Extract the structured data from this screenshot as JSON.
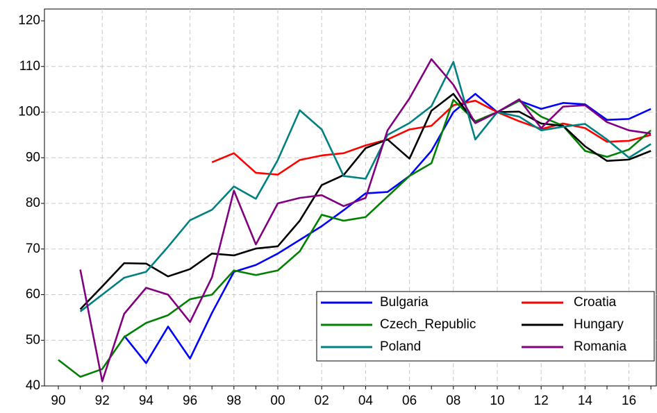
{
  "chart_data": {
    "type": "line",
    "categories": [
      "90",
      null,
      "92",
      null,
      "94",
      null,
      "96",
      null,
      "98",
      null,
      "00",
      null,
      "02",
      null,
      "04",
      null,
      "06",
      null,
      "08",
      null,
      "10",
      null,
      "12",
      null,
      "14",
      null,
      "16",
      null
    ],
    "series": [
      {
        "name": "Bulgaria",
        "color": "#0000ff",
        "values": [
          null,
          null,
          null,
          51,
          45,
          53,
          46,
          56,
          65,
          66.5,
          69,
          72,
          75,
          78.5,
          82.2,
          82.5,
          86,
          91.5,
          100,
          104,
          100,
          102.5,
          100.7,
          102,
          101.7,
          98.3,
          98.5,
          100.7
        ]
      },
      {
        "name": "Croatia",
        "color": "#ff0000",
        "values": [
          null,
          null,
          null,
          null,
          null,
          null,
          null,
          89,
          91,
          86.7,
          86.3,
          89.5,
          90.5,
          91,
          92.7,
          94,
          96.2,
          97,
          101.5,
          102.5,
          100,
          98,
          96.3,
          97.5,
          96.5,
          93.5,
          93.7,
          95
        ]
      },
      {
        "name": "Czech_Republic",
        "color": "#008000",
        "values": [
          45.7,
          42,
          43.7,
          50.7,
          53.8,
          55.5,
          59,
          60,
          65.3,
          64.3,
          65.3,
          69.5,
          77.5,
          76.2,
          77,
          81.5,
          86,
          88.8,
          102.7,
          98,
          100,
          102.5,
          99,
          97,
          91.5,
          90.2,
          91.8,
          96
        ]
      },
      {
        "name": "Hungary",
        "color": "#000000",
        "values": [
          null,
          56.8,
          61.8,
          66.9,
          66.8,
          64,
          65.6,
          69,
          68.6,
          70.1,
          70.6,
          76.2,
          84,
          86.2,
          92.1,
          94,
          89.8,
          100.3,
          104,
          97.6,
          100,
          100.1,
          97.5,
          97,
          92.5,
          89.3,
          89.6,
          91.5
        ]
      },
      {
        "name": "Poland",
        "color": "#008080",
        "values": [
          null,
          56.3,
          60,
          63.7,
          65,
          70.5,
          76.3,
          78.6,
          83.7,
          81,
          89.5,
          100.4,
          96.2,
          86,
          85.4,
          95,
          97.6,
          101.3,
          111,
          94,
          100,
          99,
          96,
          96.8,
          97.4,
          94,
          90,
          93
        ]
      },
      {
        "name": "Romania",
        "color": "#800080",
        "values": [
          null,
          65.5,
          41,
          55.8,
          61.5,
          60,
          54,
          63.8,
          82.8,
          71,
          80,
          81.2,
          81.8,
          79.4,
          81.2,
          96,
          103,
          111.6,
          106,
          97.6,
          100,
          102.8,
          96.5,
          101.2,
          101.5,
          97.8,
          96,
          95.3
        ]
      }
    ],
    "ylim": [
      40,
      120
    ],
    "yticks": [
      40,
      50,
      60,
      70,
      80,
      90,
      100,
      110,
      120
    ],
    "grid": true,
    "legend": "lower right"
  }
}
